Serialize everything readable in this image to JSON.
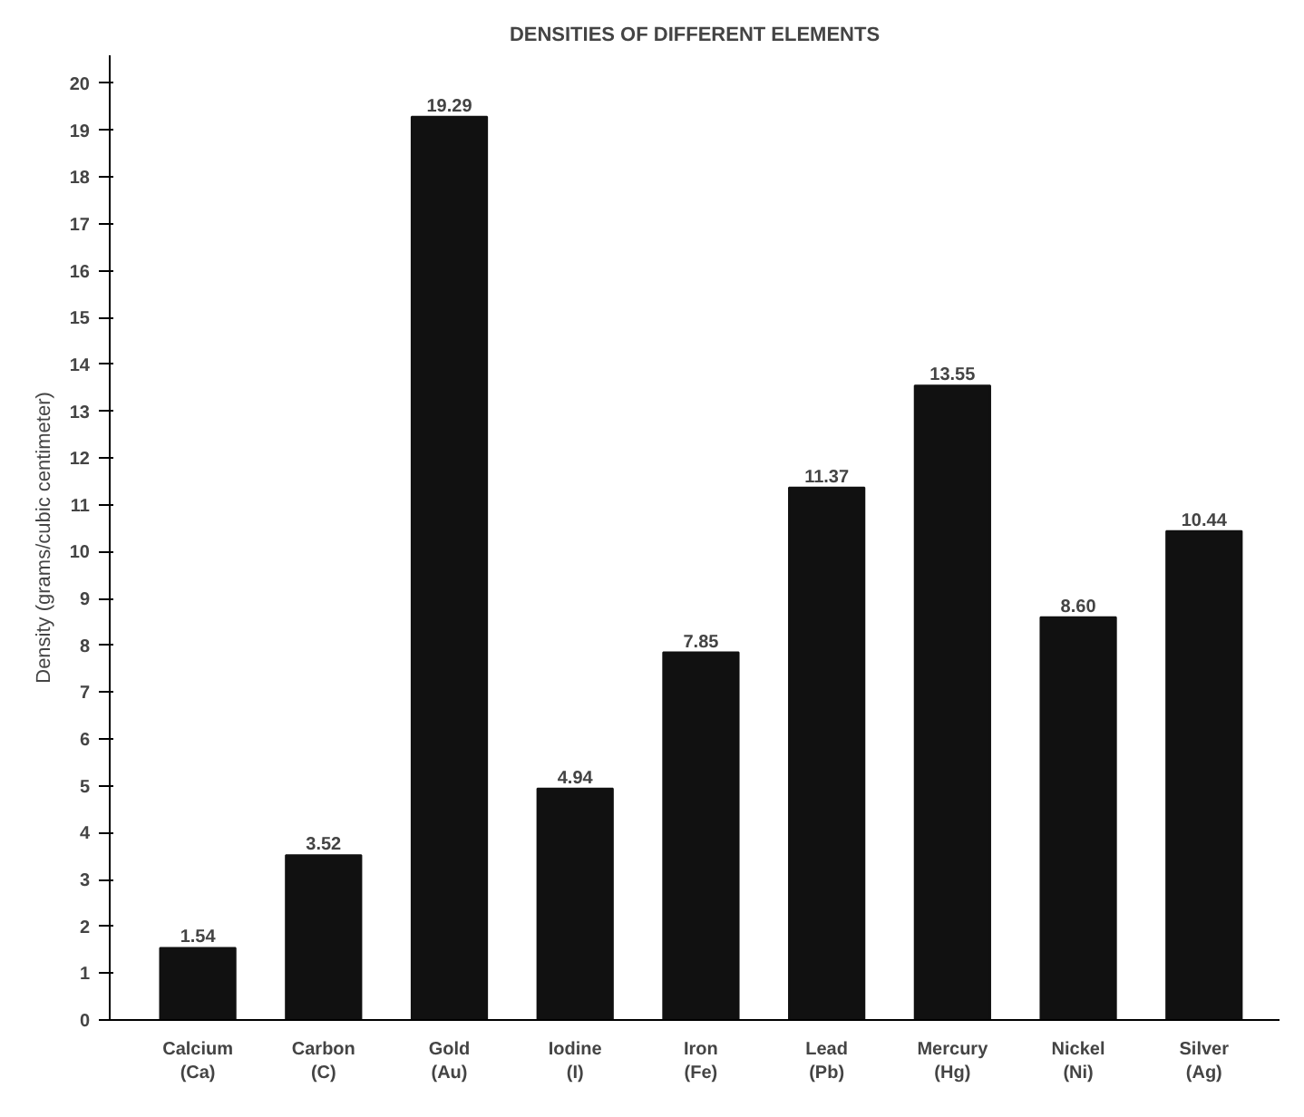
{
  "chart_data": {
    "type": "bar",
    "title": "DENSITIES OF DIFFERENT ELEMENTS",
    "ylabel": "Density (grams/cubic centimeter)",
    "categories": [
      "Calcium\n(Ca)",
      "Carbon\n(C)",
      "Gold\n(Au)",
      "Iodine\n(I)",
      "Iron\n(Fe)",
      "Lead\n(Pb)",
      "Mercury\n(Hg)",
      "Nickel\n(Ni)",
      "Silver\n(Ag)"
    ],
    "values": [
      1.54,
      3.52,
      19.29,
      4.94,
      7.85,
      11.37,
      13.55,
      8.6,
      10.44
    ],
    "value_labels": [
      "1.54",
      "3.52",
      "19.29",
      "4.94",
      "7.85",
      "11.37",
      "13.55",
      "8.60",
      "10.44"
    ],
    "color": "#111111",
    "ylim": [
      0,
      20.6
    ],
    "yticks": [
      0,
      1,
      2,
      3,
      4,
      5,
      6,
      7,
      8,
      9,
      10,
      11,
      12,
      13,
      14,
      15,
      16,
      17,
      18,
      19,
      20
    ],
    "grid": false
  }
}
